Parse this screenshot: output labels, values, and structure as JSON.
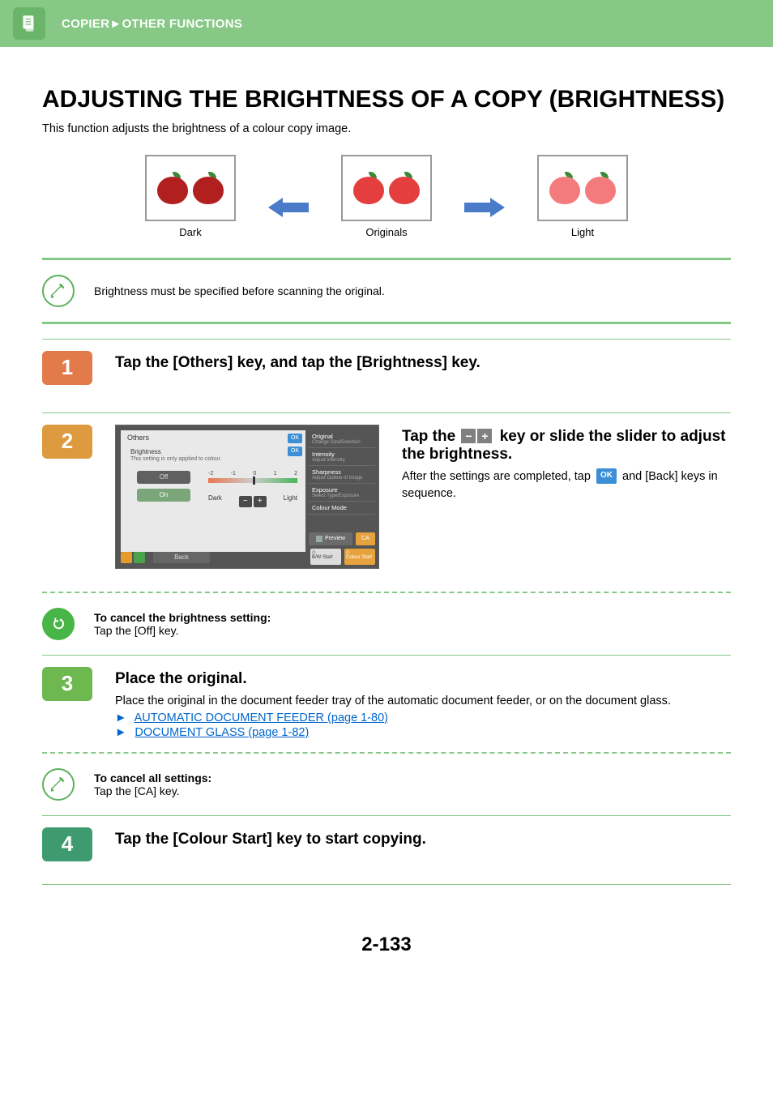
{
  "colors": {
    "header_bg": "#87c886",
    "header_icon_bg": "#6bb56a",
    "step1_bg": "#e37a4a",
    "step2_bg": "#de9a3e",
    "step3_bg": "#6db84f",
    "step4_bg": "#3d9b6f",
    "arrow": "#4a7bc8",
    "link": "#0066cc",
    "ok_blue": "#3b8fd6"
  },
  "header": {
    "breadcrumb_prefix": "COPIER",
    "breadcrumb_sep": "►",
    "breadcrumb_section": "OTHER FUNCTIONS"
  },
  "title": "ADJUSTING THE BRIGHTNESS OF A COPY (BRIGHTNESS)",
  "intro": "This function adjusts the brightness of a colour copy image.",
  "illustration": {
    "labels": {
      "left": "Dark",
      "center": "Originals",
      "right": "Light"
    },
    "apple_colors": {
      "dark": "#b21f1f",
      "orig": "#e53e3e",
      "light": "#f47b7b",
      "leaf": "#3a8a3a"
    }
  },
  "note_top": "Brightness must be specified before scanning the original.",
  "step1": {
    "num": "1",
    "title": "Tap the [Others] key, and tap the [Brightness] key."
  },
  "step2": {
    "num": "2",
    "title_pre": "Tap the ",
    "title_post": " key or slide the slider to adjust the brightness.",
    "body_pre": "After the settings are completed, tap ",
    "body_post": " and [Back] keys in sequence.",
    "ok_label": "OK",
    "screenshot": {
      "panel_title": "Others",
      "section": "Brightness",
      "section_sub": "This setting is only applied to colour.",
      "off": "Off",
      "on": "On",
      "scale_nums": [
        "-2",
        "-1",
        "0",
        "1",
        "2"
      ],
      "scale_left": "Dark",
      "scale_right": "Light",
      "back": "Back",
      "ok": "OK",
      "side": [
        {
          "t": "Original",
          "s": "Change Size/Direction"
        },
        {
          "t": "Intensity",
          "s": "Adjust Intensity"
        },
        {
          "t": "Sharpness",
          "s": "Adjust Outline of Image"
        },
        {
          "t": "Exposure",
          "s": "Select Type/Exposure"
        },
        {
          "t": "Colour Mode",
          "s": ""
        }
      ],
      "preview": "Preview",
      "ca": "CA",
      "bw": "B/W Start",
      "colour": "Colour Start"
    }
  },
  "cancel_brightness": {
    "heading": "To cancel the brightness setting:",
    "body": "Tap the [Off] key."
  },
  "step3": {
    "num": "3",
    "title": "Place the original.",
    "body": "Place the original in the document feeder tray of the automatic document feeder, or on the document glass.",
    "links": [
      {
        "text": "AUTOMATIC DOCUMENT FEEDER (page 1-80)"
      },
      {
        "text": "DOCUMENT GLASS (page 1-82)"
      }
    ]
  },
  "cancel_all": {
    "heading": "To cancel all settings:",
    "body": "Tap the [CA] key."
  },
  "step4": {
    "num": "4",
    "title": "Tap the [Colour Start] key to start copying."
  },
  "page_number": "2-133"
}
